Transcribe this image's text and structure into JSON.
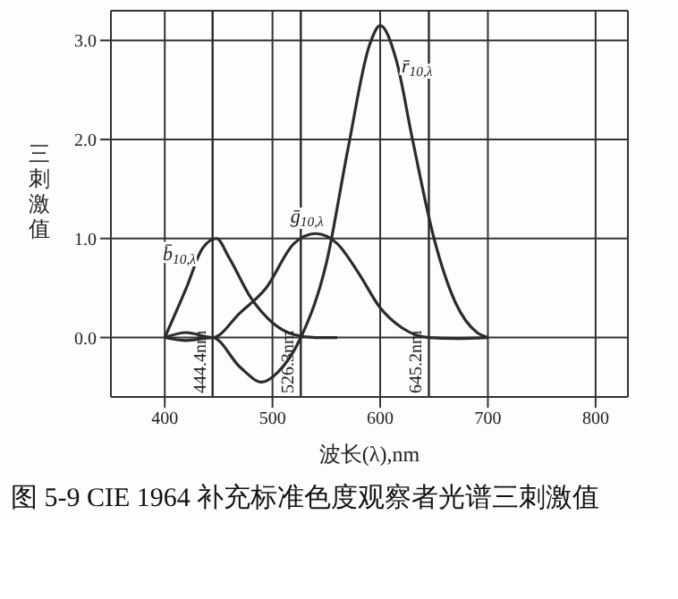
{
  "chart_data": {
    "type": "line",
    "title": "图 5-9 CIE 1964 补充标准色度观察者光谱三刺激值",
    "xlabel": "波长(λ),nm",
    "ylabel": "三刺激值",
    "xlim": [
      350,
      830
    ],
    "xticks": [
      400,
      500,
      600,
      700,
      800
    ],
    "ylim": [
      -0.6,
      3.3
    ],
    "yticks": [
      {
        "value": 0,
        "label": "0.0"
      },
      {
        "value": 1,
        "label": "1.0"
      },
      {
        "value": 2,
        "label": "2.0"
      },
      {
        "value": 3,
        "label": "3.0"
      }
    ],
    "grid": true,
    "marker": "none",
    "line_style": "solid",
    "series": [
      {
        "name": "r̄$_{10,λ}$",
        "color": "#2b2b2b",
        "x": [
          400,
          420,
          444.4,
          470,
          490,
          505,
          526.3,
          550,
          570,
          590,
          600,
          615,
          630,
          650,
          670,
          690,
          700
        ],
        "values": [
          0,
          -0.03,
          0,
          -0.3,
          -0.45,
          -0.35,
          0,
          0.75,
          1.9,
          2.95,
          3.15,
          2.8,
          2.0,
          1.0,
          0.35,
          0.05,
          0
        ]
      },
      {
        "name": "ḡ$_{10,λ}$",
        "color": "#2b2b2b",
        "x": [
          400,
          420,
          444.4,
          470,
          494,
          520,
          540,
          560,
          580,
          600,
          620,
          645.2,
          670,
          700
        ],
        "values": [
          0,
          0.05,
          0,
          0.25,
          0.5,
          0.95,
          1.05,
          0.95,
          0.65,
          0.3,
          0.1,
          0,
          -0.01,
          0
        ]
      },
      {
        "name": "b̄$_{10,λ}$",
        "color": "#2b2b2b",
        "x": [
          400,
          420,
          435,
          448,
          460,
          480,
          500,
          520,
          540,
          560
        ],
        "values": [
          0,
          0.5,
          0.9,
          1.0,
          0.8,
          0.4,
          0.15,
          0.03,
          0,
          0
        ]
      }
    ],
    "ref_lines": [
      {
        "axis": "x",
        "value": 444.4,
        "label": "444.4nm",
        "color": "#2b2b2b"
      },
      {
        "axis": "x",
        "value": 526.3,
        "label": "526.3nm",
        "color": "#2b2b2b"
      },
      {
        "axis": "x",
        "value": 645.2,
        "label": "645.2nm",
        "color": "#2b2b2b"
      }
    ]
  }
}
